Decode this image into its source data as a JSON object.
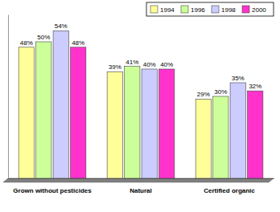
{
  "chart_data": {
    "type": "bar",
    "categories": [
      "Grown without pesticides",
      "Natural",
      "Certified organic"
    ],
    "series": [
      {
        "name": "1994",
        "color": "#ffff99",
        "values": [
          48,
          39,
          29
        ],
        "value_labels": [
          "48%",
          "39%",
          "29%"
        ]
      },
      {
        "name": "1996",
        "color": "#ccff99",
        "values": [
          50,
          41,
          30
        ],
        "value_labels": [
          "50%",
          "41%",
          "30%"
        ]
      },
      {
        "name": "1998",
        "color": "#ccccff",
        "values": [
          54,
          40,
          35
        ],
        "value_labels": [
          "54%",
          "40%",
          "35%"
        ]
      },
      {
        "name": "2000",
        "color": "#ff33cc",
        "values": [
          48,
          40,
          32
        ],
        "value_labels": [
          "48%",
          "40%",
          "32%"
        ]
      }
    ],
    "ylim": [
      0,
      60
    ],
    "grid": false,
    "legend": "top-right",
    "data_labels": true,
    "tick_labels": "x"
  }
}
